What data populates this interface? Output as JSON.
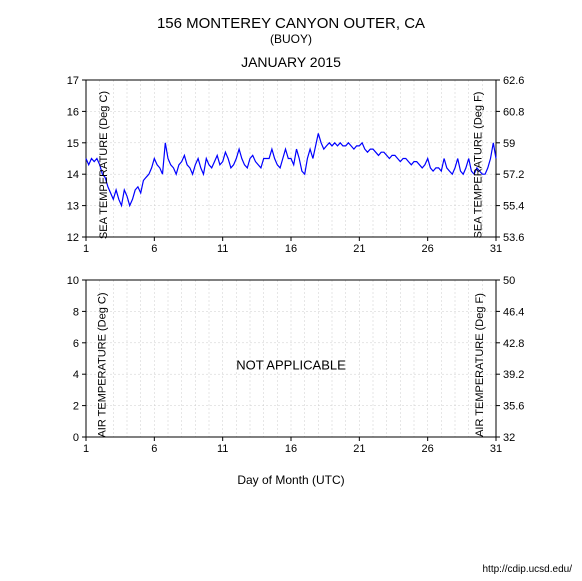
{
  "header": {
    "title_main": "156 MONTEREY CANYON OUTER, CA",
    "title_sub": "(BUOY)",
    "title_month": "JANUARY 2015"
  },
  "footer": {
    "url": "http://cdip.ucsd.edu/"
  },
  "xaxis": {
    "label": "Day of Month (UTC)",
    "min": 1,
    "max": 31,
    "ticks": [
      1,
      6,
      11,
      16,
      21,
      26,
      31
    ],
    "minor_step": 1
  },
  "sea_chart": {
    "type": "line",
    "ylabel_left": "SEA TEMPERATURE (Deg C)",
    "ylabel_right": "SEA TEMPERATURE (Deg F)",
    "ylim_c": [
      12,
      17
    ],
    "yticks_c": [
      12,
      13,
      14,
      15,
      16,
      17
    ],
    "yticks_f": [
      53.6,
      55.4,
      57.2,
      59,
      60.8,
      62.6
    ],
    "line_color": "#0000ff",
    "line_width": 1.2,
    "background_color": "#ffffff",
    "grid_color": "#cccccc",
    "axis_color": "#000000",
    "series_x": [
      1,
      1.2,
      1.4,
      1.6,
      1.8,
      2,
      2.2,
      2.4,
      2.6,
      2.8,
      3,
      3.2,
      3.4,
      3.6,
      3.8,
      4,
      4.2,
      4.4,
      4.6,
      4.8,
      5,
      5.2,
      5.4,
      5.6,
      5.8,
      6,
      6.2,
      6.4,
      6.6,
      6.8,
      7,
      7.2,
      7.4,
      7.6,
      7.8,
      8,
      8.2,
      8.4,
      8.6,
      8.8,
      9,
      9.2,
      9.4,
      9.6,
      9.8,
      10,
      10.2,
      10.4,
      10.6,
      10.8,
      11,
      11.2,
      11.4,
      11.6,
      11.8,
      12,
      12.2,
      12.4,
      12.6,
      12.8,
      13,
      13.2,
      13.4,
      13.6,
      13.8,
      14,
      14.2,
      14.4,
      14.6,
      14.8,
      15,
      15.2,
      15.4,
      15.6,
      15.8,
      16,
      16.2,
      16.4,
      16.6,
      16.8,
      17,
      17.2,
      17.4,
      17.6,
      17.8,
      18,
      18.2,
      18.4,
      18.6,
      18.8,
      19,
      19.2,
      19.4,
      19.6,
      19.8,
      20,
      20.2,
      20.4,
      20.6,
      20.8,
      21,
      21.2,
      21.4,
      21.6,
      21.8,
      22,
      22.2,
      22.4,
      22.6,
      22.8,
      23,
      23.2,
      23.4,
      23.6,
      23.8,
      24,
      24.2,
      24.4,
      24.6,
      24.8,
      25,
      25.2,
      25.4,
      25.6,
      25.8,
      26,
      26.2,
      26.4,
      26.6,
      26.8,
      27,
      27.2,
      27.4,
      27.6,
      27.8,
      28,
      28.2,
      28.4,
      28.6,
      28.8,
      29,
      29.2,
      29.4,
      29.6,
      29.8,
      30,
      30.2,
      30.4,
      30.6,
      30.8,
      31
    ],
    "series_y": [
      14.5,
      14.3,
      14.5,
      14.4,
      14.5,
      14.3,
      14.0,
      13.9,
      13.6,
      13.4,
      13.2,
      13.5,
      13.2,
      13.0,
      13.5,
      13.3,
      13.0,
      13.2,
      13.5,
      13.6,
      13.4,
      13.8,
      13.9,
      14.0,
      14.2,
      14.5,
      14.3,
      14.2,
      14.0,
      15.0,
      14.5,
      14.3,
      14.2,
      14.0,
      14.3,
      14.4,
      14.6,
      14.3,
      14.2,
      14.0,
      14.3,
      14.5,
      14.2,
      14.0,
      14.5,
      14.3,
      14.2,
      14.4,
      14.6,
      14.3,
      14.4,
      14.7,
      14.5,
      14.2,
      14.3,
      14.5,
      14.8,
      14.5,
      14.3,
      14.2,
      14.5,
      14.6,
      14.4,
      14.3,
      14.2,
      14.5,
      14.5,
      14.5,
      14.8,
      14.5,
      14.3,
      14.2,
      14.5,
      14.8,
      14.5,
      14.5,
      14.3,
      14.8,
      14.5,
      14.1,
      14.0,
      14.5,
      14.8,
      14.5,
      14.9,
      15.3,
      15.0,
      14.8,
      14.9,
      15.0,
      14.9,
      15.0,
      14.9,
      15.0,
      14.9,
      14.9,
      15.0,
      14.9,
      14.8,
      14.9,
      14.9,
      15.0,
      14.8,
      14.7,
      14.8,
      14.8,
      14.7,
      14.6,
      14.7,
      14.7,
      14.6,
      14.5,
      14.6,
      14.6,
      14.5,
      14.4,
      14.5,
      14.5,
      14.4,
      14.3,
      14.4,
      14.4,
      14.3,
      14.2,
      14.3,
      14.5,
      14.2,
      14.1,
      14.2,
      14.2,
      14.1,
      14.5,
      14.2,
      14.1,
      14.0,
      14.2,
      14.5,
      14.1,
      14.0,
      14.2,
      14.5,
      14.1,
      14.0,
      14.2,
      14.1,
      14.0,
      14.0,
      14.2,
      14.5,
      15.0,
      14.5
    ]
  },
  "air_chart": {
    "type": "line",
    "ylabel_left": "AIR TEMPERATURE (Deg C)",
    "ylabel_right": "AIR TEMPERATURE (Deg F)",
    "ylim_c": [
      0,
      10
    ],
    "yticks_c": [
      0,
      2,
      4,
      6,
      8,
      10
    ],
    "yticks_f": [
      32,
      35.6,
      39.2,
      42.8,
      46.4,
      50
    ],
    "background_color": "#ffffff",
    "grid_color": "#cccccc",
    "axis_color": "#000000",
    "overlay_text": "NOT APPLICABLE"
  }
}
